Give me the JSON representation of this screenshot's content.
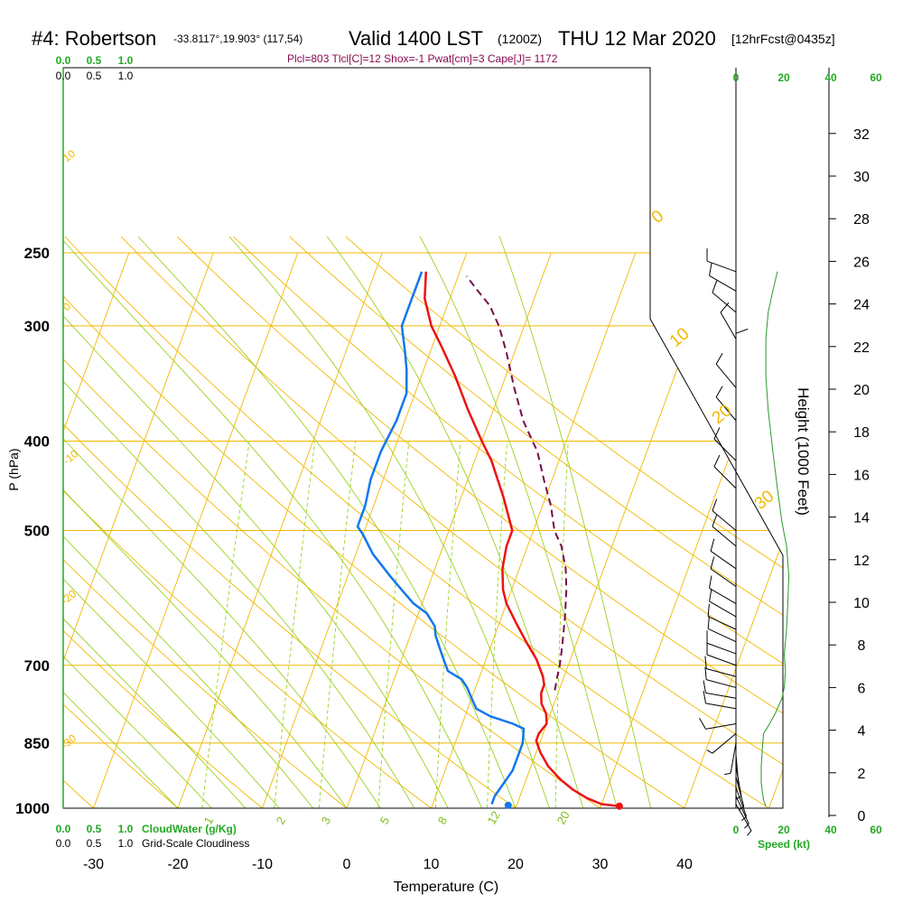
{
  "title": {
    "station": "#4: Robertson",
    "coords": "-33.8117°,19.903° (117,54)",
    "valid": "Valid 1400 LST",
    "utc": "(1200Z)",
    "date": "THU 12 Mar 2020",
    "forecast": "[12hrFcst@0435z]",
    "indices": "Plcl=803 Tlcl[C]=12 Shox=-1 Pwat[cm]=3 Cape[J]= 1172"
  },
  "chart_data": {
    "type": "line",
    "subtype": "skew-T log-P sounding",
    "xlabel": "Temperature (C)",
    "ylabel": "P (hPa)",
    "right_ylabel": "Height (1000 Feet)",
    "temperature_ticks": [
      -30,
      -20,
      -10,
      0,
      10,
      20,
      30,
      40
    ],
    "pressure_ticks": [
      250,
      300,
      400,
      500,
      700,
      850,
      1000
    ],
    "height_ticks": [
      0,
      2,
      4,
      6,
      8,
      10,
      12,
      14,
      16,
      18,
      20,
      22,
      24,
      26,
      28,
      30,
      32
    ],
    "xlim": [
      -35,
      52
    ],
    "ylim_hpa": [
      1000,
      250
    ],
    "colors": {
      "temperature": "#ee1111",
      "dewpoint": "#1177ee",
      "parcel": "#7a0a4a",
      "isobar": "#f2b800",
      "isotherm": "#f2b800",
      "dry_adiabat": "#f2b800",
      "moist_adiabat": "#9ad21e",
      "mixing_ratio": "#9ad21e",
      "wind": "#000000",
      "speed_profile": "#2a9a2a",
      "cloud_scale": "#22aa22"
    },
    "series": [
      {
        "name": "temperature",
        "points": [
          [
            32.2,
            995
          ],
          [
            30,
            990
          ],
          [
            28,
            975
          ],
          [
            26,
            955
          ],
          [
            24,
            930
          ],
          [
            22,
            900
          ],
          [
            20.5,
            870
          ],
          [
            19.5,
            845
          ],
          [
            19.5,
            830
          ],
          [
            20,
            810
          ],
          [
            19.5,
            790
          ],
          [
            18.5,
            770
          ],
          [
            18,
            750
          ],
          [
            18,
            735
          ],
          [
            17.5,
            720
          ],
          [
            16,
            690
          ],
          [
            14,
            660
          ],
          [
            12,
            630
          ],
          [
            10,
            600
          ],
          [
            9,
            580
          ],
          [
            8,
            550
          ],
          [
            7.5,
            520
          ],
          [
            7.5,
            500
          ],
          [
            5,
            460
          ],
          [
            2,
            420
          ],
          [
            0,
            400
          ],
          [
            -3,
            370
          ],
          [
            -6,
            340
          ],
          [
            -9,
            315
          ],
          [
            -11,
            300
          ],
          [
            -13,
            280
          ],
          [
            -14,
            262
          ]
        ]
      },
      {
        "name": "dewpoint",
        "points": [
          [
            17,
            990
          ],
          [
            17,
            970
          ],
          [
            17.5,
            940
          ],
          [
            18,
            910
          ],
          [
            18,
            880
          ],
          [
            18,
            850
          ],
          [
            17.5,
            820
          ],
          [
            16,
            810
          ],
          [
            13,
            795
          ],
          [
            11,
            780
          ],
          [
            10,
            760
          ],
          [
            9,
            740
          ],
          [
            8,
            725
          ],
          [
            6,
            710
          ],
          [
            5,
            690
          ],
          [
            4,
            670
          ],
          [
            3,
            650
          ],
          [
            2.5,
            635
          ],
          [
            1,
            615
          ],
          [
            -1,
            600
          ],
          [
            -3,
            580
          ],
          [
            -5,
            560
          ],
          [
            -8,
            530
          ],
          [
            -10,
            505
          ],
          [
            -11,
            495
          ],
          [
            -11,
            470
          ],
          [
            -11.5,
            440
          ],
          [
            -11.5,
            410
          ],
          [
            -11,
            380
          ],
          [
            -11,
            355
          ],
          [
            -12,
            335
          ],
          [
            -13,
            320
          ],
          [
            -14.5,
            300
          ],
          [
            -14.5,
            290
          ],
          [
            -14.5,
            275
          ],
          [
            -14.5,
            262
          ]
        ]
      },
      {
        "name": "parcel",
        "points": [
          [
            19.5,
            745
          ],
          [
            19.2,
            720
          ],
          [
            19,
            700
          ],
          [
            18.5,
            670
          ],
          [
            17.5,
            620
          ],
          [
            16.5,
            580
          ],
          [
            15.5,
            550
          ],
          [
            14,
            520
          ],
          [
            12.5,
            500
          ],
          [
            11,
            470
          ],
          [
            9,
            440
          ],
          [
            7,
            410
          ],
          [
            6,
            400
          ],
          [
            4,
            380
          ],
          [
            1.5,
            350
          ],
          [
            -1,
            320
          ],
          [
            -3,
            300
          ],
          [
            -5,
            285
          ],
          [
            -7,
            275
          ],
          [
            -9,
            265
          ]
        ]
      }
    ],
    "surface_points": {
      "temperature": [
        32.2,
        995
      ],
      "dewpoint": [
        19,
        993
      ]
    },
    "dry_adiabat_labels": [
      "10",
      "0",
      "-10",
      "-20",
      "-30",
      "0",
      "10",
      "20",
      "30"
    ],
    "mixing_ratio_labels": [
      "1",
      "2",
      "3",
      "5",
      "8",
      "12",
      "20"
    ],
    "cloud_water_scale": {
      "label": "CloudWater (g/Kg)",
      "ticks": [
        "0.0",
        "0.5",
        "1.0"
      ]
    },
    "cloudiness_scale": {
      "label": "Grid-Scale Cloudiness",
      "ticks": [
        "0.0",
        "0.5",
        "1.0"
      ]
    },
    "wind_speed_scale": {
      "label": "Speed (kt)",
      "ticks": [
        "0",
        "20",
        "40",
        "60"
      ]
    },
    "wind_speed_profile": [
      [
        13,
        995
      ],
      [
        12,
        980
      ],
      [
        11.5,
        960
      ],
      [
        11,
        940
      ],
      [
        11,
        900
      ],
      [
        11.5,
        860
      ],
      [
        12,
        830
      ],
      [
        14,
        815
      ],
      [
        17,
        790
      ],
      [
        20,
        760
      ],
      [
        21,
        740
      ],
      [
        21.5,
        710
      ],
      [
        21,
        680
      ],
      [
        22,
        640
      ],
      [
        22.5,
        600
      ],
      [
        23,
        560
      ],
      [
        22,
        520
      ],
      [
        20,
        490
      ],
      [
        18,
        450
      ],
      [
        16,
        410
      ],
      [
        14,
        370
      ],
      [
        13,
        340
      ],
      [
        13,
        310
      ],
      [
        14,
        290
      ],
      [
        16,
        275
      ],
      [
        18,
        262
      ]
    ],
    "wind_barbs": [
      {
        "p": 990,
        "dir": 150,
        "spd": 6
      },
      {
        "p": 970,
        "dir": 155,
        "spd": 6
      },
      {
        "p": 950,
        "dir": 160,
        "spd": 5
      },
      {
        "p": 925,
        "dir": 165,
        "spd": 5
      },
      {
        "p": 900,
        "dir": 170,
        "spd": 5
      },
      {
        "p": 875,
        "dir": 175,
        "spd": 4
      },
      {
        "p": 850,
        "dir": 190,
        "spd": 5
      },
      {
        "p": 830,
        "dir": 230,
        "spd": 8
      },
      {
        "p": 810,
        "dir": 260,
        "spd": 10
      },
      {
        "p": 780,
        "dir": 280,
        "spd": 10
      },
      {
        "p": 760,
        "dir": 280,
        "spd": 10
      },
      {
        "p": 740,
        "dir": 285,
        "spd": 10
      },
      {
        "p": 720,
        "dir": 285,
        "spd": 10
      },
      {
        "p": 700,
        "dir": 290,
        "spd": 10
      },
      {
        "p": 680,
        "dir": 290,
        "spd": 10
      },
      {
        "p": 660,
        "dir": 295,
        "spd": 10
      },
      {
        "p": 640,
        "dir": 295,
        "spd": 10
      },
      {
        "p": 620,
        "dir": 300,
        "spd": 10
      },
      {
        "p": 600,
        "dir": 300,
        "spd": 10
      },
      {
        "p": 575,
        "dir": 305,
        "spd": 10
      },
      {
        "p": 550,
        "dir": 305,
        "spd": 10
      },
      {
        "p": 520,
        "dir": 310,
        "spd": 10
      },
      {
        "p": 500,
        "dir": 310,
        "spd": 10
      },
      {
        "p": 450,
        "dir": 315,
        "spd": 10
      },
      {
        "p": 420,
        "dir": 315,
        "spd": 10
      },
      {
        "p": 380,
        "dir": 320,
        "spd": 10
      },
      {
        "p": 350,
        "dir": 320,
        "spd": 10
      },
      {
        "p": 330,
        "dir": 0,
        "spd": 10
      },
      {
        "p": 310,
        "dir": 330,
        "spd": 10
      },
      {
        "p": 290,
        "dir": 310,
        "spd": 10
      },
      {
        "p": 275,
        "dir": 300,
        "spd": 10
      },
      {
        "p": 262,
        "dir": 290,
        "spd": 10
      }
    ],
    "grid": true
  }
}
